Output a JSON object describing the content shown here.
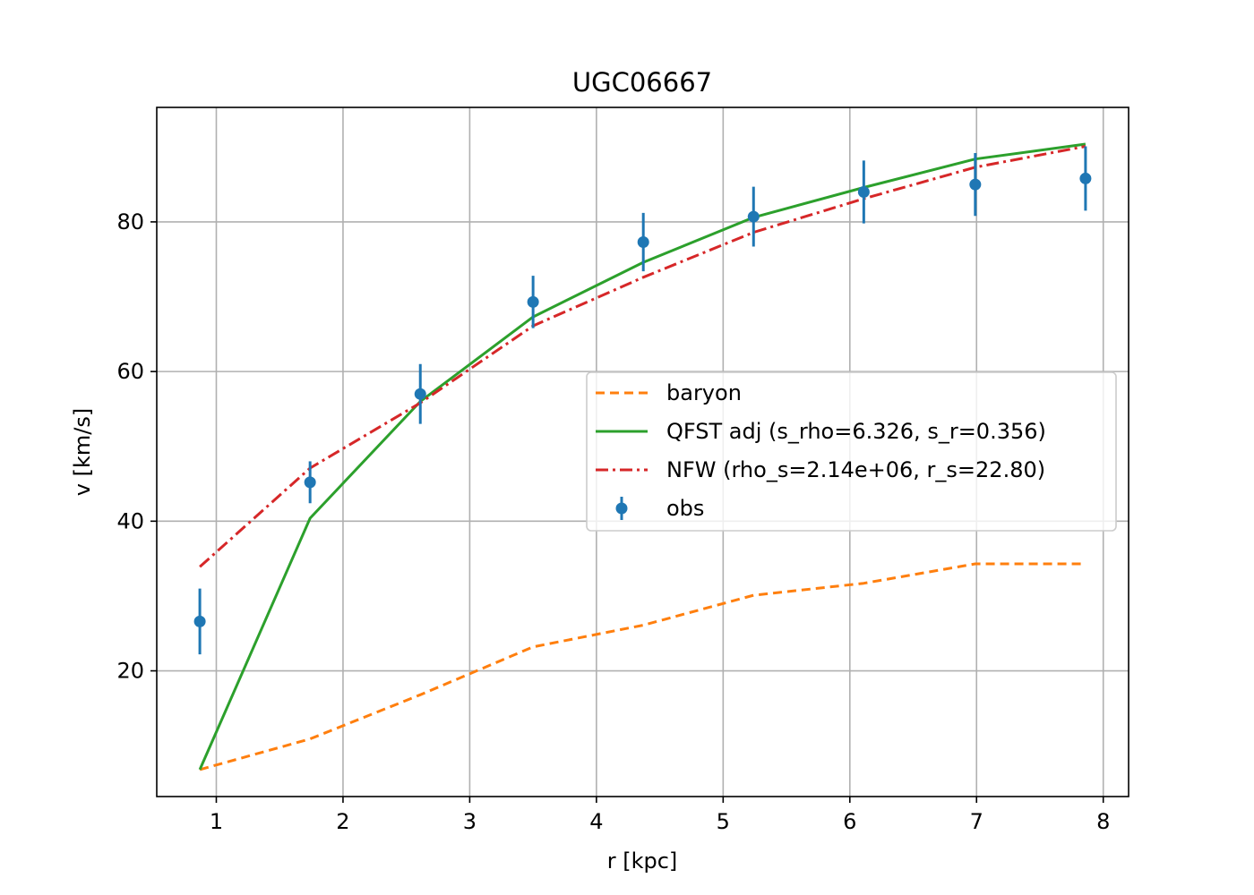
{
  "chart_data": {
    "type": "line",
    "title": "UGC06667",
    "xlabel": "r [kpc]",
    "ylabel": "v [km/s]",
    "xlim": [
      0.53,
      8.2
    ],
    "ylim": [
      3.2,
      95.3
    ],
    "xticks": [
      1,
      2,
      3,
      4,
      5,
      6,
      7,
      8
    ],
    "yticks": [
      20,
      40,
      60,
      80
    ],
    "grid": true,
    "legend_position": "center-right",
    "x": [
      0.87,
      1.74,
      2.61,
      3.5,
      4.37,
      5.24,
      6.11,
      6.99,
      7.86
    ],
    "series": [
      {
        "name": "baryon",
        "style": "dashed",
        "color": "#ff7f0e",
        "values": [
          6.8,
          10.9,
          16.8,
          23.2,
          26.1,
          30.1,
          31.7,
          34.3,
          34.3
        ]
      },
      {
        "name": "QFST adj (s_rho=6.326, s_r=0.356)",
        "style": "solid",
        "color": "#2ca02c",
        "values": [
          6.8,
          40.4,
          56.0,
          67.3,
          74.6,
          80.6,
          84.6,
          88.4,
          90.4
        ]
      },
      {
        "name": "NFW (rho_s=2.14e+06, r_s=22.80)",
        "style": "dashdot",
        "color": "#d62728",
        "values": [
          33.9,
          47.1,
          55.8,
          66.1,
          72.6,
          78.6,
          83.1,
          87.3,
          90.1
        ]
      },
      {
        "name": "obs",
        "style": "errorbar",
        "color": "#1f77b4",
        "values": [
          26.6,
          45.2,
          57.0,
          69.3,
          77.3,
          80.7,
          84.0,
          85.0,
          85.8
        ],
        "errors": [
          4.4,
          2.8,
          4.0,
          3.5,
          3.9,
          4.0,
          4.2,
          4.2,
          4.3
        ]
      }
    ]
  }
}
